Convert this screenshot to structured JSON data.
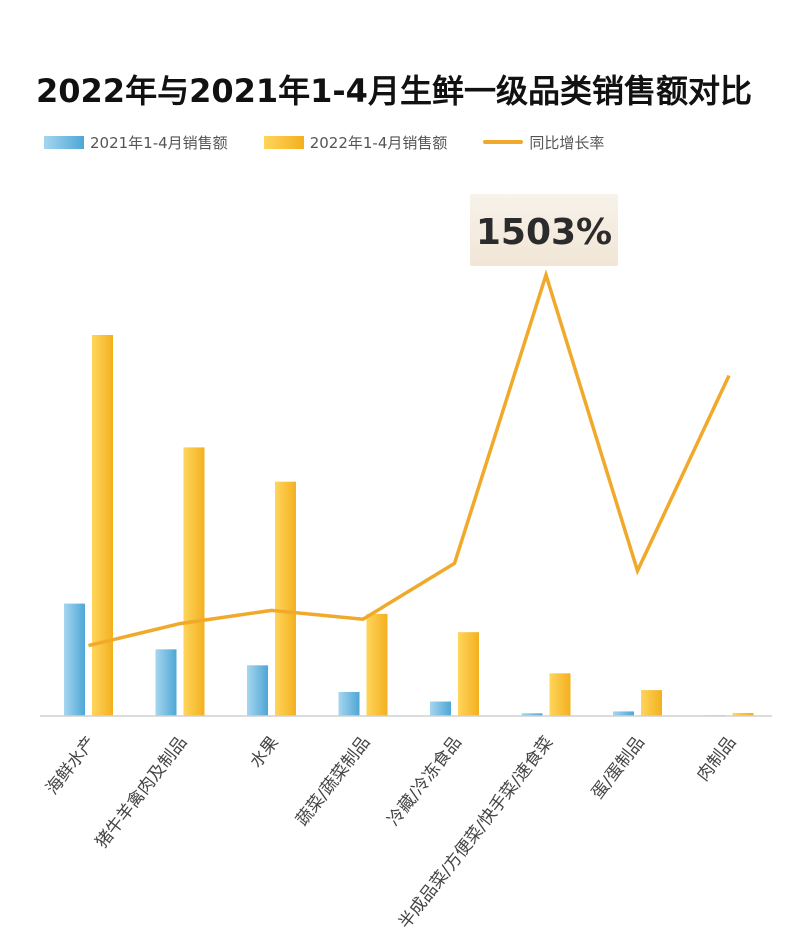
{
  "chart_data": {
    "type": "bar",
    "title": "2022年与2021年1-4月生鲜一级品类销售额对比",
    "categories": [
      "海鲜水产",
      "猪牛羊禽肉及制品",
      "水果",
      "蔬菜/蔬菜制品",
      "冷藏/冷冻食品",
      "半成品菜/方便菜/快手菜/速食菜",
      "蛋/蛋制品",
      "肉制品"
    ],
    "series": [
      {
        "name": "2021年1-4月销售额",
        "kind": "bar",
        "color": "#5fb1dc",
        "values": [
          29.5,
          17.5,
          13.3,
          6.3,
          3.8,
          0.7,
          1.2,
          0.2
        ]
      },
      {
        "name": "2022年1-4月销售额",
        "kind": "bar",
        "color": "#f5b921",
        "values": [
          100,
          70.5,
          61.5,
          26.8,
          22.0,
          11.2,
          6.8,
          0.8
        ]
      },
      {
        "name": "同比增长率",
        "kind": "line",
        "color": "#f0a92a",
        "values": [
          240,
          315,
          360,
          330,
          520,
          1503,
          495,
          1160
        ]
      }
    ],
    "annotation": "1503%",
    "show_value_axes": false,
    "grid": false,
    "legend": "top-left"
  },
  "colors": {
    "bar_2021_light": "#a6d6ef",
    "bar_2021_dark": "#4ea6d6",
    "bar_2022_light": "#ffd55c",
    "bar_2022_dark": "#f3b01f",
    "line": "#f0a92a",
    "axis": "#d0d0d0",
    "label": "#444444",
    "annotation_bg": "#f5ede1"
  }
}
